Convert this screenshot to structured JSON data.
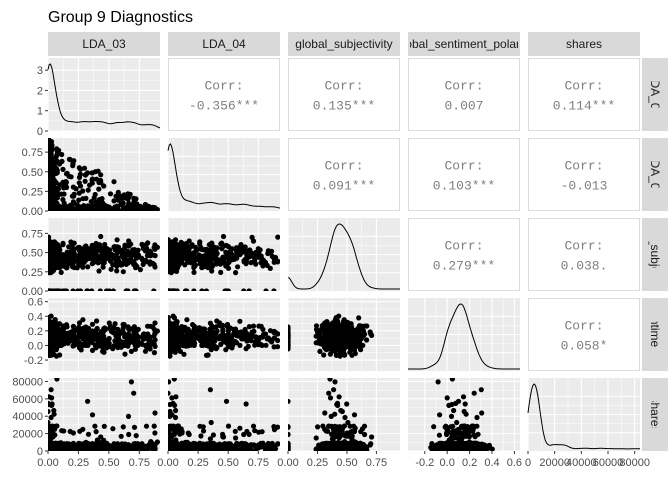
{
  "chart_data": {
    "type": "scatter",
    "title": "Group 9 Diagnostics",
    "variables": [
      "LDA_03",
      "LDA_04",
      "global_subjectivity",
      "global_sentiment_polarity",
      "shares"
    ],
    "strip_labels": [
      "LDA_03",
      "LDA_04",
      "global_subjectivity",
      "global_sentiment_polarity",
      "shares"
    ],
    "axis_ranges": [
      [
        0,
        0.92
      ],
      [
        0,
        0.93
      ],
      [
        0,
        0.95
      ],
      [
        -0.35,
        0.65
      ],
      [
        0,
        84000
      ]
    ],
    "x_ticks": [
      [
        "0.00",
        "0.25",
        "0.50",
        "0.75"
      ],
      [
        "0.00",
        "0.25",
        "0.50",
        "0.75"
      ],
      [
        "0.00",
        "0.25",
        "0.50",
        "0.75"
      ],
      [
        "-0.2",
        "0.0",
        "0.2",
        "0.4",
        "0.6"
      ],
      [
        "0",
        "20000",
        "40000",
        "60000",
        "80000"
      ]
    ],
    "x_tick_values": [
      [
        0,
        0.25,
        0.5,
        0.75
      ],
      [
        0,
        0.25,
        0.5,
        0.75
      ],
      [
        0,
        0.25,
        0.5,
        0.75
      ],
      [
        -0.2,
        0,
        0.2,
        0.4,
        0.6
      ],
      [
        0,
        20000,
        40000,
        60000,
        80000
      ]
    ],
    "y_ticks": [
      [
        "0",
        "1",
        "2",
        "3"
      ],
      [
        "0.00",
        "0.25",
        "0.50",
        "0.75"
      ],
      [
        "0.00",
        "0.25",
        "0.50",
        "0.75"
      ],
      [
        "-0.2",
        "0.0",
        "0.2",
        "0.4",
        "0.6"
      ],
      [
        "0",
        "20000",
        "40000",
        "60000",
        "80000"
      ]
    ],
    "y_tick_values": [
      [
        0,
        1,
        2,
        3
      ],
      [
        0,
        0.25,
        0.5,
        0.75
      ],
      [
        0,
        0.25,
        0.5,
        0.75
      ],
      [
        -0.2,
        0,
        0.2,
        0.4,
        0.6
      ],
      [
        0,
        20000,
        40000,
        60000,
        80000
      ]
    ],
    "density_y_range": [
      0,
      3.6
    ],
    "correlations": [
      {
        "row": 0,
        "col": 1,
        "label": "Corr:",
        "value": "-0.356***"
      },
      {
        "row": 0,
        "col": 2,
        "label": "Corr:",
        "value": "0.135***"
      },
      {
        "row": 0,
        "col": 3,
        "label": "Corr:",
        "value": "0.007"
      },
      {
        "row": 0,
        "col": 4,
        "label": "Corr:",
        "value": "0.114***"
      },
      {
        "row": 1,
        "col": 2,
        "label": "Corr:",
        "value": "0.091***"
      },
      {
        "row": 1,
        "col": 3,
        "label": "Corr:",
        "value": "0.103***"
      },
      {
        "row": 1,
        "col": 4,
        "label": "Corr:",
        "value": "-0.013"
      },
      {
        "row": 2,
        "col": 3,
        "label": "Corr:",
        "value": "0.279***"
      },
      {
        "row": 2,
        "col": 4,
        "label": "Corr:",
        "value": "0.038."
      },
      {
        "row": 3,
        "col": 4,
        "label": "Corr:",
        "value": "0.058*"
      }
    ],
    "grid": true,
    "legend": "none",
    "colors": {
      "panel_bg": "#ebebeb",
      "grid_major": "#ffffff",
      "strip_bg": "#d9d9d9",
      "points": "#000000",
      "corr_text": "#7f7f7f",
      "corr_border": "#dcdcdc"
    }
  }
}
